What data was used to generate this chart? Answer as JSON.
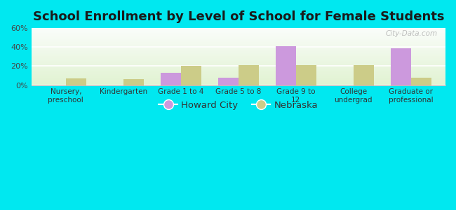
{
  "title": "School Enrollment by Level of School for Female Students",
  "categories": [
    "Nursery,\npreschool",
    "Kindergarten",
    "Grade 1 to 4",
    "Grade 5 to 8",
    "Grade 9 to\n12",
    "College\nundergrad",
    "Graduate or\nprofessional"
  ],
  "howard_city": [
    0,
    0,
    13,
    8,
    41,
    0,
    39
  ],
  "nebraska": [
    7,
    6,
    20,
    21,
    21,
    21,
    8
  ],
  "howard_city_color": "#cc99dd",
  "nebraska_color": "#cccc88",
  "background_color": "#00e8f0",
  "ylim": [
    0,
    60
  ],
  "yticks": [
    0,
    20,
    40,
    60
  ],
  "ytick_labels": [
    "0%",
    "20%",
    "40%",
    "60%"
  ],
  "title_fontsize": 13,
  "legend_labels": [
    "Howard City",
    "Nebraska"
  ],
  "bar_width": 0.35,
  "watermark": "City-Data.com"
}
